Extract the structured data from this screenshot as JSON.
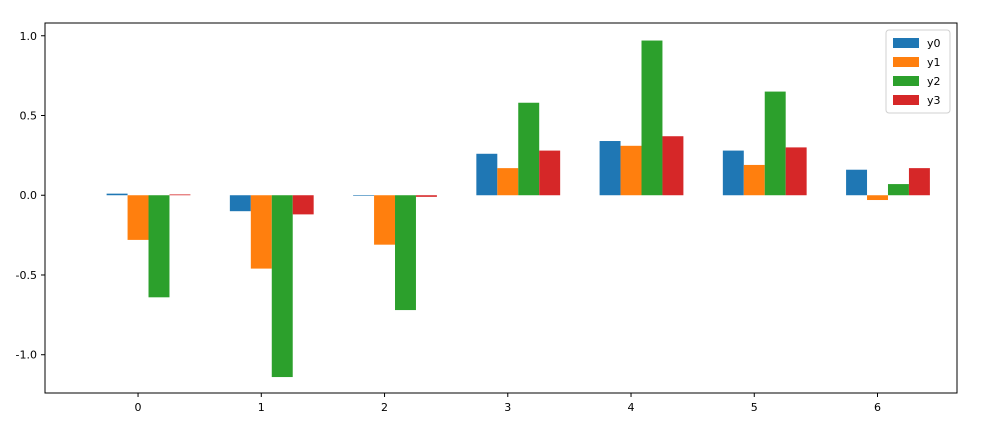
{
  "chart_data": {
    "type": "bar",
    "categories": [
      "0",
      "1",
      "2",
      "3",
      "4",
      "5",
      "6"
    ],
    "series": [
      {
        "name": "y0",
        "color": "#1f77b4",
        "values": [
          0.01,
          -0.1,
          0.0,
          0.26,
          0.34,
          0.28,
          0.16
        ]
      },
      {
        "name": "y1",
        "color": "#ff7f0e",
        "values": [
          -0.28,
          -0.46,
          -0.31,
          0.17,
          0.31,
          0.19,
          -0.03
        ]
      },
      {
        "name": "y2",
        "color": "#2ca02c",
        "values": [
          -0.64,
          -1.14,
          -0.72,
          0.58,
          0.97,
          0.65,
          0.07
        ]
      },
      {
        "name": "y3",
        "color": "#d62728",
        "values": [
          0.005,
          -0.12,
          -0.01,
          0.28,
          0.37,
          0.3,
          0.17
        ]
      }
    ],
    "yticks": [
      "1.0",
      "0.5",
      "0.0",
      "-0.5",
      "-1.0"
    ],
    "ytick_values": [
      1.0,
      0.5,
      0.0,
      -0.5,
      -1.0
    ],
    "ylim": [
      -1.24,
      1.08
    ],
    "xlim": [
      -0.5,
      6.9
    ],
    "legend_position": "top-right",
    "grid": false
  }
}
